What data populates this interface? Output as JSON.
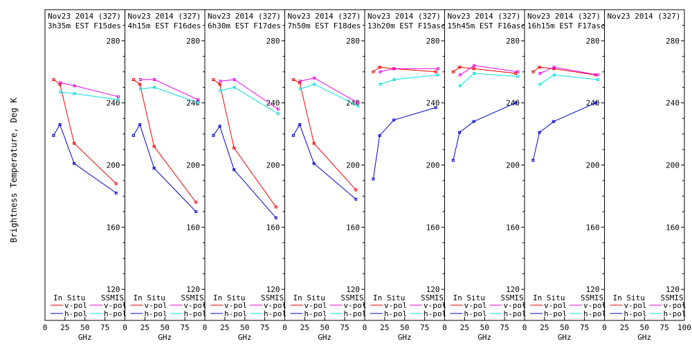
{
  "ylabel": "Brightness Temperature, Deg K",
  "xlabel": "GHz",
  "legend": {
    "insitu": "In Situ",
    "ssmis": "SSMIS",
    "vpol": "v-pol",
    "hpol": "h-pol"
  },
  "colors": {
    "insitu_v": "#ee0000",
    "insitu_h": "#0000cc",
    "ssmis_v": "#ee00ee",
    "ssmis_h": "#00e0e0"
  },
  "chart_data": [
    {
      "type": "line",
      "title_line1": "Nov23 2014 (327)",
      "title_line2": "3h35m EST F15des",
      "xlim": [
        0,
        100
      ],
      "ylim": [
        100,
        300
      ],
      "yticks": [
        "120",
        "160",
        "200",
        "240",
        "280"
      ],
      "xticks": [
        "0",
        "25",
        "50",
        "75"
      ],
      "series": [
        {
          "key": "insitu_v",
          "x": [
            10.7,
            18.7,
            36.5,
            89
          ],
          "y": [
            255,
            252,
            214,
            188
          ]
        },
        {
          "key": "insitu_h",
          "x": [
            10.7,
            18.7,
            36.5,
            89
          ],
          "y": [
            219,
            226,
            201,
            182
          ]
        },
        {
          "key": "ssmis_v",
          "x": [
            19.35,
            37,
            91.65
          ],
          "y": [
            253,
            251,
            244
          ]
        },
        {
          "key": "ssmis_h",
          "x": [
            19.35,
            37,
            91.65
          ],
          "y": [
            247,
            246,
            242
          ]
        }
      ]
    },
    {
      "type": "line",
      "title_line1": "Nov23 2014 (327)",
      "title_line2": "4h15m EST F16des",
      "xlim": [
        0,
        100
      ],
      "ylim": [
        100,
        300
      ],
      "yticks": [
        "120",
        "160",
        "200",
        "240",
        "280"
      ],
      "xticks": [
        "0",
        "25",
        "50",
        "75"
      ],
      "series": [
        {
          "key": "insitu_v",
          "x": [
            10.7,
            18.7,
            36.5,
            89
          ],
          "y": [
            255,
            252,
            212,
            176
          ]
        },
        {
          "key": "insitu_h",
          "x": [
            10.7,
            18.7,
            36.5,
            89
          ],
          "y": [
            219,
            226,
            198,
            170
          ]
        },
        {
          "key": "ssmis_v",
          "x": [
            19.35,
            37,
            91.65
          ],
          "y": [
            255,
            255,
            242
          ]
        },
        {
          "key": "ssmis_h",
          "x": [
            19.35,
            37,
            91.65
          ],
          "y": [
            249,
            250,
            240
          ]
        }
      ]
    },
    {
      "type": "line",
      "title_line1": "Nov23 2014 (327)",
      "title_line2": "6h30m EST F17des",
      "xlim": [
        0,
        100
      ],
      "ylim": [
        100,
        300
      ],
      "yticks": [
        "120",
        "160",
        "200",
        "240",
        "280"
      ],
      "xticks": [
        "0",
        "25",
        "50",
        "75"
      ],
      "series": [
        {
          "key": "insitu_v",
          "x": [
            10.7,
            18.7,
            36.5,
            89
          ],
          "y": [
            255,
            252,
            211,
            173
          ]
        },
        {
          "key": "insitu_h",
          "x": [
            10.7,
            18.7,
            36.5,
            89
          ],
          "y": [
            219,
            225,
            197,
            166
          ]
        },
        {
          "key": "ssmis_v",
          "x": [
            19.35,
            37,
            91.65
          ],
          "y": [
            254,
            255,
            236
          ]
        },
        {
          "key": "ssmis_h",
          "x": [
            19.35,
            37,
            91.65
          ],
          "y": [
            248,
            250,
            233
          ]
        }
      ]
    },
    {
      "type": "line",
      "title_line1": "Nov23 2014 (327)",
      "title_line2": "7h50m EST F18des",
      "xlim": [
        0,
        100
      ],
      "ylim": [
        100,
        300
      ],
      "yticks": [
        "120",
        "160",
        "200",
        "240",
        "280"
      ],
      "xticks": [
        "0",
        "25",
        "50",
        "75"
      ],
      "series": [
        {
          "key": "insitu_v",
          "x": [
            10.7,
            18.7,
            36.5,
            89
          ],
          "y": [
            255,
            253,
            214,
            184
          ]
        },
        {
          "key": "insitu_h",
          "x": [
            10.7,
            18.7,
            36.5,
            89
          ],
          "y": [
            219,
            226,
            201,
            178
          ]
        },
        {
          "key": "ssmis_v",
          "x": [
            19.35,
            37,
            91.65
          ],
          "y": [
            254,
            256,
            240
          ]
        },
        {
          "key": "ssmis_h",
          "x": [
            19.35,
            37,
            91.65
          ],
          "y": [
            249,
            252,
            238
          ]
        }
      ]
    },
    {
      "type": "line",
      "title_line1": "Nov23 2014 (327)",
      "title_line2": "13h20m EST F15asc",
      "xlim": [
        0,
        100
      ],
      "ylim": [
        100,
        300
      ],
      "yticks": [
        "120",
        "160",
        "200",
        "240",
        "280"
      ],
      "xticks": [
        "0",
        "25",
        "50",
        "75"
      ],
      "series": [
        {
          "key": "insitu_v",
          "x": [
            10.7,
            18.7,
            36.5,
            89
          ],
          "y": [
            260,
            263,
            262,
            260
          ]
        },
        {
          "key": "insitu_h",
          "x": [
            10.7,
            18.7,
            36.5,
            89
          ],
          "y": [
            191,
            219,
            229,
            237
          ]
        },
        {
          "key": "ssmis_v",
          "x": [
            19.35,
            37,
            91.65
          ],
          "y": [
            260,
            262,
            262
          ]
        },
        {
          "key": "ssmis_h",
          "x": [
            19.35,
            37,
            91.65
          ],
          "y": [
            252,
            255,
            258
          ]
        }
      ]
    },
    {
      "type": "line",
      "title_line1": "Nov23 2014 (327)",
      "title_line2": "15h45m EST F16asc",
      "xlim": [
        0,
        100
      ],
      "ylim": [
        100,
        300
      ],
      "yticks": [
        "120",
        "160",
        "200",
        "240",
        "280"
      ],
      "xticks": [
        "0",
        "25",
        "50",
        "75"
      ],
      "series": [
        {
          "key": "insitu_v",
          "x": [
            10.7,
            18.7,
            36.5,
            89
          ],
          "y": [
            260,
            263,
            262,
            259
          ]
        },
        {
          "key": "insitu_h",
          "x": [
            10.7,
            18.7,
            36.5,
            89
          ],
          "y": [
            203,
            221,
            228,
            240
          ]
        },
        {
          "key": "ssmis_v",
          "x": [
            19.35,
            37,
            91.65
          ],
          "y": [
            258,
            264,
            260
          ]
        },
        {
          "key": "ssmis_h",
          "x": [
            19.35,
            37,
            91.65
          ],
          "y": [
            251,
            259,
            257
          ]
        }
      ]
    },
    {
      "type": "line",
      "title_line1": "Nov23 2014 (327)",
      "title_line2": "16h15m EST F17asc",
      "xlim": [
        0,
        100
      ],
      "ylim": [
        100,
        300
      ],
      "yticks": [
        "120",
        "160",
        "200",
        "240",
        "280"
      ],
      "xticks": [
        "0",
        "25",
        "50",
        "75"
      ],
      "series": [
        {
          "key": "insitu_v",
          "x": [
            10.7,
            18.7,
            36.5,
            89
          ],
          "y": [
            260,
            263,
            262,
            258
          ]
        },
        {
          "key": "insitu_h",
          "x": [
            10.7,
            18.7,
            36.5,
            89
          ],
          "y": [
            203,
            221,
            228,
            240
          ]
        },
        {
          "key": "ssmis_v",
          "x": [
            19.35,
            37,
            91.65
          ],
          "y": [
            259,
            263,
            258
          ]
        },
        {
          "key": "ssmis_h",
          "x": [
            19.35,
            37,
            91.65
          ],
          "y": [
            252,
            258,
            255
          ]
        }
      ]
    },
    {
      "type": "line",
      "title_line1": "Nov23 2014 (327)",
      "title_line2": "",
      "xlim": [
        0,
        100
      ],
      "ylim": [
        100,
        300
      ],
      "yticks": [
        "120",
        "160",
        "200",
        "240",
        "280"
      ],
      "xticks": [
        "0",
        "25",
        "50",
        "75",
        "100"
      ],
      "series": []
    }
  ]
}
